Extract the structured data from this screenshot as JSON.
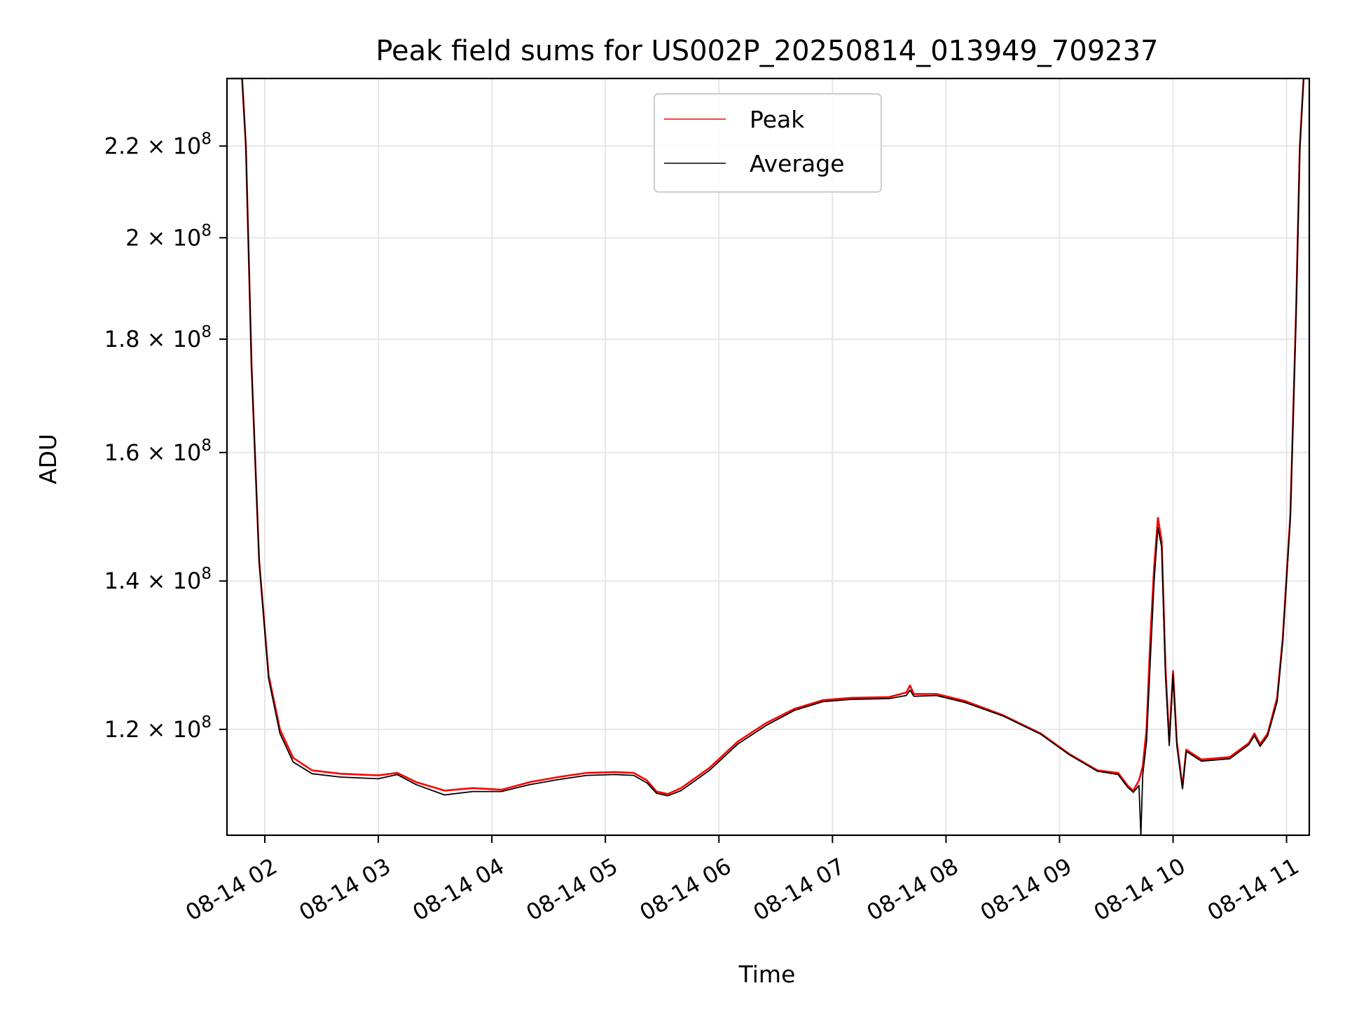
{
  "chart_data": {
    "type": "line",
    "title": "Peak field sums for US002P_20250814_013949_709237",
    "xlabel": "Time",
    "ylabel": "ADU",
    "y_scale": "log",
    "xlim": [
      "2025-08-14 01:40",
      "2025-08-14 11:12"
    ],
    "ylim": [
      107500000,
      236000000
    ],
    "x_ticks": [
      {
        "t": "2025-08-14 02:00",
        "label": "08-14 02"
      },
      {
        "t": "2025-08-14 03:00",
        "label": "08-14 03"
      },
      {
        "t": "2025-08-14 04:00",
        "label": "08-14 04"
      },
      {
        "t": "2025-08-14 05:00",
        "label": "08-14 05"
      },
      {
        "t": "2025-08-14 06:00",
        "label": "08-14 06"
      },
      {
        "t": "2025-08-14 07:00",
        "label": "08-14 07"
      },
      {
        "t": "2025-08-14 08:00",
        "label": "08-14 08"
      },
      {
        "t": "2025-08-14 09:00",
        "label": "08-14 09"
      },
      {
        "t": "2025-08-14 10:00",
        "label": "08-14 10"
      },
      {
        "t": "2025-08-14 11:00",
        "label": "08-14 11"
      }
    ],
    "y_ticks": [
      {
        "value": 120000000,
        "mantissa": "1.2",
        "exp": "8"
      },
      {
        "value": 140000000,
        "mantissa": "1.4",
        "exp": "8"
      },
      {
        "value": 160000000,
        "mantissa": "1.6",
        "exp": "8"
      },
      {
        "value": 180000000,
        "mantissa": "1.8",
        "exp": "8"
      },
      {
        "value": 200000000,
        "mantissa": "2",
        "exp": "8"
      },
      {
        "value": 220000000,
        "mantissa": "2.2",
        "exp": "8"
      }
    ],
    "grid": true,
    "legend_position": "top-center",
    "series": [
      {
        "name": "Peak",
        "color": "#ff0000",
        "points": [
          [
            "2025-08-14 01:40",
            236000000
          ],
          [
            "2025-08-14 01:48",
            236000000
          ],
          [
            "2025-08-14 01:50",
            220000000
          ],
          [
            "2025-08-14 01:53",
            175000000
          ],
          [
            "2025-08-14 01:57",
            143000000
          ],
          [
            "2025-08-14 02:02",
            127000000
          ],
          [
            "2025-08-14 02:08",
            120000000
          ],
          [
            "2025-08-14 02:15",
            116500000
          ],
          [
            "2025-08-14 02:25",
            115000000
          ],
          [
            "2025-08-14 02:40",
            114600000
          ],
          [
            "2025-08-14 03:00",
            114400000
          ],
          [
            "2025-08-14 03:10",
            114700000
          ],
          [
            "2025-08-14 03:20",
            113600000
          ],
          [
            "2025-08-14 03:35",
            112600000
          ],
          [
            "2025-08-14 03:50",
            112900000
          ],
          [
            "2025-08-14 04:05",
            112700000
          ],
          [
            "2025-08-14 04:20",
            113600000
          ],
          [
            "2025-08-14 04:35",
            114200000
          ],
          [
            "2025-08-14 04:50",
            114700000
          ],
          [
            "2025-08-14 05:05",
            114800000
          ],
          [
            "2025-08-14 05:15",
            114700000
          ],
          [
            "2025-08-14 05:22",
            113800000
          ],
          [
            "2025-08-14 05:27",
            112500000
          ],
          [
            "2025-08-14 05:33",
            112200000
          ],
          [
            "2025-08-14 05:40",
            112900000
          ],
          [
            "2025-08-14 05:55",
            115300000
          ],
          [
            "2025-08-14 06:10",
            118500000
          ],
          [
            "2025-08-14 06:25",
            120800000
          ],
          [
            "2025-08-14 06:40",
            122600000
          ],
          [
            "2025-08-14 06:55",
            123700000
          ],
          [
            "2025-08-14 07:10",
            124000000
          ],
          [
            "2025-08-14 07:30",
            124100000
          ],
          [
            "2025-08-14 07:39",
            124700000
          ],
          [
            "2025-08-14 07:41",
            125600000
          ],
          [
            "2025-08-14 07:43",
            124500000
          ],
          [
            "2025-08-14 07:55",
            124500000
          ],
          [
            "2025-08-14 08:10",
            123600000
          ],
          [
            "2025-08-14 08:30",
            121800000
          ],
          [
            "2025-08-14 08:50",
            119500000
          ],
          [
            "2025-08-14 09:05",
            117000000
          ],
          [
            "2025-08-14 09:20",
            115000000
          ],
          [
            "2025-08-14 09:31",
            114700000
          ],
          [
            "2025-08-14 09:36",
            113200000
          ],
          [
            "2025-08-14 09:39",
            112600000
          ],
          [
            "2025-08-14 09:42",
            113800000
          ],
          [
            "2025-08-14 09:44",
            115500000
          ],
          [
            "2025-08-14 09:46",
            120000000
          ],
          [
            "2025-08-14 09:48",
            132000000
          ],
          [
            "2025-08-14 09:50",
            142000000
          ],
          [
            "2025-08-14 09:52",
            149500000
          ],
          [
            "2025-08-14 09:54",
            146000000
          ],
          [
            "2025-08-14 09:56",
            128000000
          ],
          [
            "2025-08-14 09:58",
            118500000
          ],
          [
            "2025-08-14 10:00",
            127500000
          ],
          [
            "2025-08-14 10:02",
            118500000
          ],
          [
            "2025-08-14 10:05",
            113000000
          ],
          [
            "2025-08-14 10:07",
            117500000
          ],
          [
            "2025-08-14 10:15",
            116300000
          ],
          [
            "2025-08-14 10:30",
            116600000
          ],
          [
            "2025-08-14 10:40",
            118300000
          ],
          [
            "2025-08-14 10:43",
            119500000
          ],
          [
            "2025-08-14 10:46",
            118200000
          ],
          [
            "2025-08-14 10:50",
            119500000
          ],
          [
            "2025-08-14 10:55",
            124000000
          ],
          [
            "2025-08-14 10:58",
            132000000
          ],
          [
            "2025-08-14 11:02",
            150000000
          ],
          [
            "2025-08-14 11:05",
            185000000
          ],
          [
            "2025-08-14 11:07",
            220000000
          ],
          [
            "2025-08-14 11:09",
            236000000
          ],
          [
            "2025-08-14 11:12",
            236000000
          ]
        ]
      },
      {
        "name": "Average",
        "color": "#000000",
        "points": [
          [
            "2025-08-14 01:40",
            236000000
          ],
          [
            "2025-08-14 01:48",
            236000000
          ],
          [
            "2025-08-14 01:50",
            220000000
          ],
          [
            "2025-08-14 01:53",
            175000000
          ],
          [
            "2025-08-14 01:57",
            143000000
          ],
          [
            "2025-08-14 02:02",
            126500000
          ],
          [
            "2025-08-14 02:08",
            119500000
          ],
          [
            "2025-08-14 02:15",
            116000000
          ],
          [
            "2025-08-14 02:25",
            114600000
          ],
          [
            "2025-08-14 02:40",
            114200000
          ],
          [
            "2025-08-14 03:00",
            114000000
          ],
          [
            "2025-08-14 03:10",
            114500000
          ],
          [
            "2025-08-14 03:20",
            113300000
          ],
          [
            "2025-08-14 03:35",
            112100000
          ],
          [
            "2025-08-14 03:50",
            112500000
          ],
          [
            "2025-08-14 04:05",
            112500000
          ],
          [
            "2025-08-14 04:20",
            113300000
          ],
          [
            "2025-08-14 04:35",
            113900000
          ],
          [
            "2025-08-14 04:50",
            114400000
          ],
          [
            "2025-08-14 05:05",
            114500000
          ],
          [
            "2025-08-14 05:15",
            114400000
          ],
          [
            "2025-08-14 05:22",
            113500000
          ],
          [
            "2025-08-14 05:27",
            112300000
          ],
          [
            "2025-08-14 05:33",
            112000000
          ],
          [
            "2025-08-14 05:40",
            112600000
          ],
          [
            "2025-08-14 05:55",
            115000000
          ],
          [
            "2025-08-14 06:10",
            118200000
          ],
          [
            "2025-08-14 06:25",
            120500000
          ],
          [
            "2025-08-14 06:40",
            122400000
          ],
          [
            "2025-08-14 06:55",
            123500000
          ],
          [
            "2025-08-14 07:10",
            123800000
          ],
          [
            "2025-08-14 07:30",
            123900000
          ],
          [
            "2025-08-14 07:39",
            124300000
          ],
          [
            "2025-08-14 07:41",
            125000000
          ],
          [
            "2025-08-14 07:43",
            124200000
          ],
          [
            "2025-08-14 07:55",
            124300000
          ],
          [
            "2025-08-14 08:10",
            123400000
          ],
          [
            "2025-08-14 08:30",
            121700000
          ],
          [
            "2025-08-14 08:50",
            119400000
          ],
          [
            "2025-08-14 09:05",
            116900000
          ],
          [
            "2025-08-14 09:20",
            114900000
          ],
          [
            "2025-08-14 09:31",
            114500000
          ],
          [
            "2025-08-14 09:36",
            113000000
          ],
          [
            "2025-08-14 09:39",
            112400000
          ],
          [
            "2025-08-14 09:42",
            113200000
          ],
          [
            "2025-08-14 09:43",
            107500000
          ],
          [
            "2025-08-14 09:44",
            114500000
          ],
          [
            "2025-08-14 09:46",
            118500000
          ],
          [
            "2025-08-14 09:48",
            129000000
          ],
          [
            "2025-08-14 09:50",
            140000000
          ],
          [
            "2025-08-14 09:52",
            148000000
          ],
          [
            "2025-08-14 09:54",
            145000000
          ],
          [
            "2025-08-14 09:56",
            127000000
          ],
          [
            "2025-08-14 09:58",
            118000000
          ],
          [
            "2025-08-14 10:00",
            127000000
          ],
          [
            "2025-08-14 10:02",
            118000000
          ],
          [
            "2025-08-14 10:05",
            112800000
          ],
          [
            "2025-08-14 10:07",
            117300000
          ],
          [
            "2025-08-14 10:15",
            116100000
          ],
          [
            "2025-08-14 10:30",
            116400000
          ],
          [
            "2025-08-14 10:40",
            118100000
          ],
          [
            "2025-08-14 10:43",
            119200000
          ],
          [
            "2025-08-14 10:46",
            117900000
          ],
          [
            "2025-08-14 10:50",
            119200000
          ],
          [
            "2025-08-14 10:55",
            123500000
          ],
          [
            "2025-08-14 10:58",
            131500000
          ],
          [
            "2025-08-14 11:02",
            149500000
          ],
          [
            "2025-08-14 11:05",
            184000000
          ],
          [
            "2025-08-14 11:07",
            219000000
          ],
          [
            "2025-08-14 11:09",
            236000000
          ],
          [
            "2025-08-14 11:12",
            236000000
          ]
        ]
      }
    ]
  }
}
